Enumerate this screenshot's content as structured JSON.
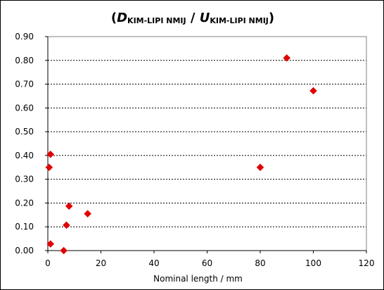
{
  "chart_data": {
    "type": "scatter",
    "title_parts": [
      {
        "text": "(",
        "italic": false,
        "sub": false
      },
      {
        "text": "D",
        "italic": true,
        "sub": false
      },
      {
        "text": "KIM-LIPI NMIJ",
        "italic": false,
        "sub": true
      },
      {
        "text": " / ",
        "italic": false,
        "sub": false
      },
      {
        "text": "U",
        "italic": true,
        "sub": false
      },
      {
        "text": "KIM-LIPI NMIJ",
        "italic": false,
        "sub": true
      },
      {
        "text": ")",
        "italic": false,
        "sub": false
      }
    ],
    "xlabel": "Nominal length / mm",
    "ylabel": "",
    "xlim": [
      0,
      120
    ],
    "ylim": [
      0,
      0.9
    ],
    "x_ticks": [
      "0",
      "20",
      "40",
      "60",
      "80",
      "100",
      "120"
    ],
    "y_ticks": [
      "0.00",
      "0.10",
      "0.20",
      "0.30",
      "0.40",
      "0.50",
      "0.60",
      "0.70",
      "0.80",
      "0.90"
    ],
    "grid": "horizontal-dashed",
    "marker": "diamond",
    "marker_color": "#e00000",
    "points": [
      {
        "x": 0.5,
        "y": 0.35
      },
      {
        "x": 1,
        "y": 0.405
      },
      {
        "x": 1,
        "y": 0.028
      },
      {
        "x": 6,
        "y": 0.0
      },
      {
        "x": 7,
        "y": 0.107
      },
      {
        "x": 8,
        "y": 0.187
      },
      {
        "x": 15,
        "y": 0.155
      },
      {
        "x": 80,
        "y": 0.35
      },
      {
        "x": 90,
        "y": 0.81
      },
      {
        "x": 100,
        "y": 0.672
      }
    ]
  }
}
